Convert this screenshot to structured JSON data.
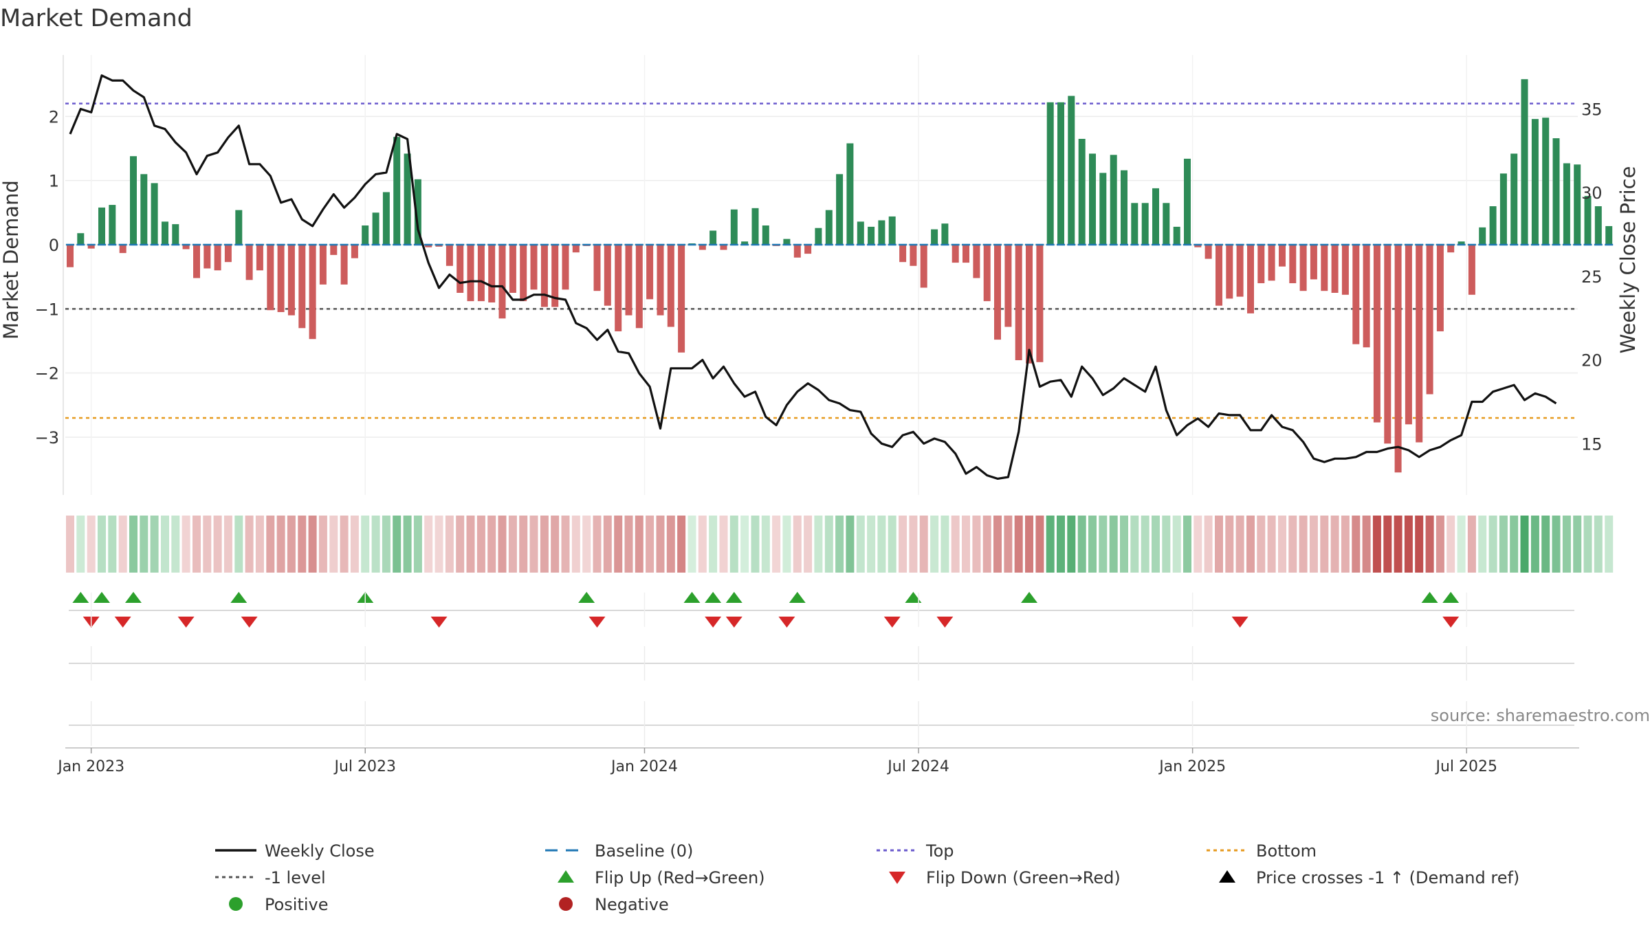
{
  "chart_data": {
    "type": "bar",
    "title": "Market Demand",
    "ylabel_left": "Market Demand",
    "ylabel_right": "Weekly Close Price",
    "y_left_range": [
      -3.9,
      3.0
    ],
    "y_right_range": [
      12,
      38
    ],
    "y_left_ticks": [
      2,
      1,
      0,
      -1,
      -2,
      -3
    ],
    "y_left_tick_labels": [
      "2",
      "1",
      "0",
      "−1",
      "−2",
      "−3"
    ],
    "y_right_ticks": [
      35,
      30,
      25,
      20,
      15
    ],
    "y_right_tick_labels": [
      "35",
      "30",
      "25",
      "20",
      "15"
    ],
    "x_ticks": [
      {
        "label": "Jan 2023",
        "week": 2
      },
      {
        "label": "Jul 2023",
        "week": 28
      },
      {
        "label": "Jan 2024",
        "week": 54.5
      },
      {
        "label": "Jul 2024",
        "week": 80.5
      },
      {
        "label": "Jan 2025",
        "week": 106.5
      },
      {
        "label": "Jul 2025",
        "week": 132.5
      }
    ],
    "reference_lines": {
      "top": 2.2,
      "minus_one_level": -1.0,
      "bottom": -2.7,
      "baseline": 0
    },
    "demand": [
      -0.35,
      0.18,
      -0.06,
      0.58,
      0.62,
      -0.13,
      1.38,
      1.1,
      0.96,
      0.36,
      0.32,
      -0.07,
      -0.52,
      -0.37,
      -0.4,
      -0.27,
      0.54,
      -0.55,
      -0.4,
      -1.02,
      -1.05,
      -1.1,
      -1.3,
      -1.47,
      -0.62,
      -0.16,
      -0.62,
      -0.21,
      0.3,
      0.5,
      0.82,
      1.68,
      1.42,
      1.02,
      -0.04,
      -0.03,
      -0.33,
      -0.75,
      -0.88,
      -0.88,
      -0.9,
      -1.15,
      -0.75,
      -0.88,
      -0.7,
      -0.97,
      -0.97,
      -0.7,
      -0.12,
      -0.02,
      -0.72,
      -0.95,
      -1.35,
      -1.1,
      -1.3,
      -0.85,
      -1.1,
      -1.28,
      -1.68,
      0.02,
      -0.08,
      0.22,
      -0.08,
      0.55,
      0.05,
      0.57,
      0.3,
      -0.02,
      0.09,
      -0.2,
      -0.14,
      0.26,
      0.54,
      1.1,
      1.58,
      0.36,
      0.28,
      0.38,
      0.44,
      -0.27,
      -0.33,
      -0.67,
      0.24,
      0.33,
      -0.28,
      -0.28,
      -0.52,
      -0.88,
      -1.48,
      -1.28,
      -1.8,
      -1.85,
      -1.83,
      2.22,
      2.22,
      2.32,
      1.65,
      1.42,
      1.12,
      1.4,
      1.16,
      0.65,
      0.65,
      0.88,
      0.65,
      0.28,
      1.34,
      -0.04,
      -0.22,
      -0.95,
      -0.84,
      -0.81,
      -1.07,
      -0.6,
      -0.56,
      -0.34,
      -0.6,
      -0.72,
      -0.54,
      -0.72,
      -0.75,
      -0.78,
      -1.55,
      -1.6,
      -2.77,
      -3.1,
      -3.55,
      -2.8,
      -3.08,
      -2.33,
      -1.35,
      -0.12,
      0.05,
      -0.78,
      0.27,
      0.6,
      1.11,
      1.42,
      2.58,
      1.96,
      1.98,
      1.66,
      1.27,
      1.25,
      0.76,
      0.6,
      0.29
    ],
    "price": [
      33.5,
      35.0,
      34.8,
      37.0,
      36.7,
      36.7,
      36.1,
      35.7,
      34.0,
      33.8,
      33.0,
      32.4,
      31.1,
      32.2,
      32.4,
      33.3,
      34.0,
      31.7,
      31.7,
      31.0,
      29.4,
      29.6,
      28.4,
      28.0,
      29.0,
      29.9,
      29.1,
      29.7,
      30.5,
      31.1,
      31.2,
      33.5,
      33.2,
      27.8,
      25.8,
      24.3,
      25.1,
      24.6,
      24.7,
      24.7,
      24.4,
      24.4,
      23.6,
      23.6,
      23.9,
      23.9,
      23.7,
      23.6,
      22.2,
      21.9,
      21.2,
      21.8,
      20.5,
      20.4,
      19.2,
      18.4,
      15.9,
      19.5,
      19.5,
      19.5,
      20.0,
      18.9,
      19.6,
      18.6,
      17.8,
      18.1,
      16.6,
      16.1,
      17.3,
      18.1,
      18.6,
      18.2,
      17.6,
      17.4,
      17.0,
      16.9,
      15.6,
      15.0,
      14.8,
      15.5,
      15.7,
      15.0,
      15.3,
      15.1,
      14.4,
      13.2,
      13.6,
      13.1,
      12.9,
      13.0,
      15.7,
      20.6,
      18.4,
      18.7,
      18.8,
      17.8,
      19.6,
      18.9,
      17.9,
      18.3,
      18.9,
      18.5,
      18.1,
      19.6,
      17.0,
      15.5,
      16.1,
      16.5,
      16.0,
      16.8,
      16.7,
      16.7,
      15.8,
      15.8,
      16.7,
      16.0,
      15.8,
      15.1,
      14.1,
      13.9,
      14.1,
      14.1,
      14.2,
      14.5,
      14.5,
      14.7,
      14.8,
      14.6,
      14.2,
      14.6,
      14.8,
      15.2,
      15.5,
      17.5,
      17.5,
      18.1,
      18.3,
      18.5,
      17.6,
      18.0,
      17.8,
      17.4
    ],
    "flip_up_weeks": [
      1,
      3,
      6,
      16,
      28,
      49,
      59,
      61,
      63,
      69,
      80,
      91,
      129,
      131
    ],
    "flip_down_weeks": [
      2,
      5,
      11,
      17,
      35,
      50,
      61,
      63,
      68,
      78,
      83,
      111,
      131
    ],
    "legend": [
      {
        "key": "weekly_close",
        "label": "Weekly Close",
        "marker": "line",
        "color": "#111111"
      },
      {
        "key": "baseline",
        "label": "Baseline (0)",
        "marker": "dash",
        "color": "#1f77b4"
      },
      {
        "key": "top",
        "label": "Top",
        "marker": "dotted",
        "color": "#6a5acd"
      },
      {
        "key": "bottom",
        "label": "Bottom",
        "marker": "dotted",
        "color": "#e69a1f"
      },
      {
        "key": "minus_one",
        "label": "-1 level",
        "marker": "dotted",
        "color": "#555555"
      },
      {
        "key": "flip_up",
        "label": "Flip Up (Red→Green)",
        "marker": "triangle-up",
        "color": "#2ca02c"
      },
      {
        "key": "flip_down",
        "label": "Flip Down (Green→Red)",
        "marker": "triangle-down",
        "color": "#d62728"
      },
      {
        "key": "price_cross",
        "label": "Price crosses -1 ↑ (Demand ref)",
        "marker": "triangle-up",
        "color": "#000000"
      },
      {
        "key": "positive",
        "label": "Positive",
        "marker": "circle",
        "color": "#2ca02c"
      },
      {
        "key": "negative",
        "label": "Negative",
        "marker": "circle",
        "color": "#b22222"
      }
    ],
    "source": "source: sharemaestro.com",
    "colors": {
      "positive_bar": "#2e8b57",
      "negative_bar": "#cd5c5c",
      "price_line": "#111111"
    }
  }
}
